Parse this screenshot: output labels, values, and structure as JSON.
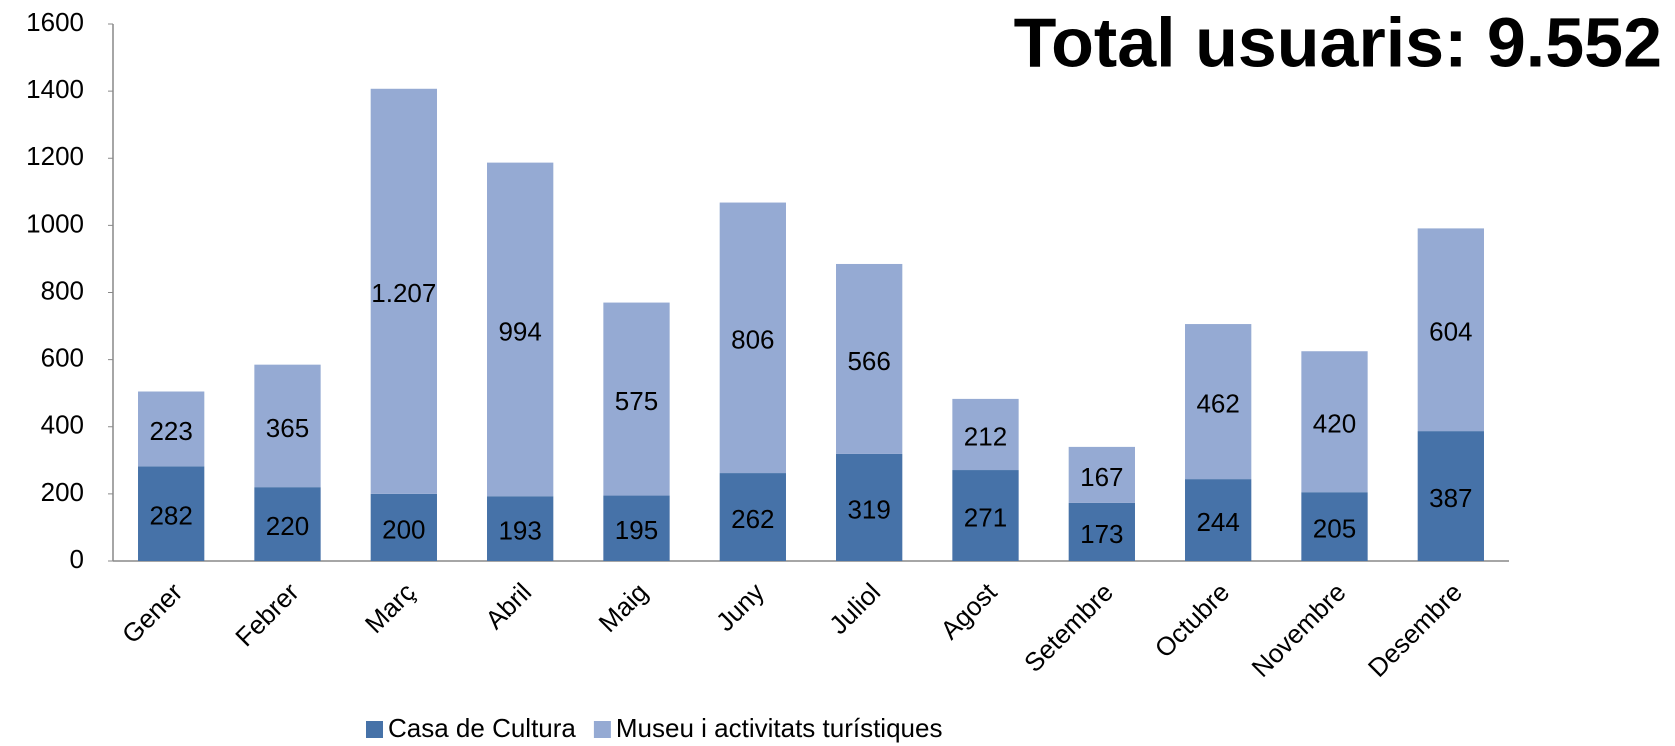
{
  "chart_data": {
    "type": "stacked-bar",
    "title": "Total usuaris: 9.552",
    "categories": [
      "Gener",
      "Febrer",
      "Març",
      "Abril",
      "Maig",
      "Juny",
      "Juliol",
      "Agost",
      "Setembre",
      "Octubre",
      "Novembre",
      "Desembre"
    ],
    "series": [
      {
        "name": "Casa de Cultura",
        "color": "#4672a8",
        "values": [
          282,
          220,
          200,
          193,
          195,
          262,
          319,
          271,
          173,
          244,
          205,
          387
        ]
      },
      {
        "name": "Museu i activitats turístiques",
        "color": "#95aad3",
        "values": [
          223,
          365,
          1207,
          994,
          575,
          806,
          566,
          212,
          167,
          462,
          420,
          604
        ],
        "value_labels": [
          "223",
          "365",
          "1.207",
          "994",
          "575",
          "806",
          "566",
          "212",
          "167",
          "462",
          "420",
          "604"
        ]
      }
    ],
    "ylim": [
      0,
      1600
    ],
    "yticks": [
      0,
      200,
      400,
      600,
      800,
      1000,
      1200,
      1400,
      1600
    ],
    "legend": "bottom"
  }
}
